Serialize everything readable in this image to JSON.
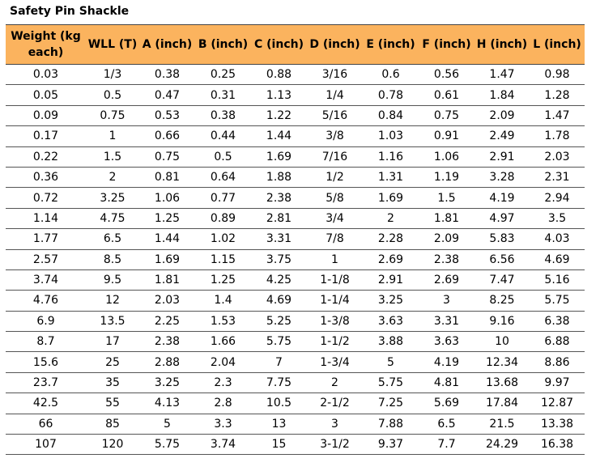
{
  "title": "Safety Pin Shackle",
  "table": {
    "headers": [
      "Weight (kg each)",
      "WLL (T)",
      "A (inch)",
      "B (inch)",
      "C (inch)",
      "D (inch)",
      "E (inch)",
      "F (inch)",
      "H (inch)",
      "L (inch)"
    ],
    "rows": [
      [
        "0.03",
        "1/3",
        "0.38",
        "0.25",
        "0.88",
        "3/16",
        "0.6",
        "0.56",
        "1.47",
        "0.98"
      ],
      [
        "0.05",
        "0.5",
        "0.47",
        "0.31",
        "1.13",
        "1/4",
        "0.78",
        "0.61",
        "1.84",
        "1.28"
      ],
      [
        "0.09",
        "0.75",
        "0.53",
        "0.38",
        "1.22",
        "5/16",
        "0.84",
        "0.75",
        "2.09",
        "1.47"
      ],
      [
        "0.17",
        "1",
        "0.66",
        "0.44",
        "1.44",
        "3/8",
        "1.03",
        "0.91",
        "2.49",
        "1.78"
      ],
      [
        "0.22",
        "1.5",
        "0.75",
        "0.5",
        "1.69",
        "7/16",
        "1.16",
        "1.06",
        "2.91",
        "2.03"
      ],
      [
        "0.36",
        "2",
        "0.81",
        "0.64",
        "1.88",
        "1/2",
        "1.31",
        "1.19",
        "3.28",
        "2.31"
      ],
      [
        "0.72",
        "3.25",
        "1.06",
        "0.77",
        "2.38",
        "5/8",
        "1.69",
        "1.5",
        "4.19",
        "2.94"
      ],
      [
        "1.14",
        "4.75",
        "1.25",
        "0.89",
        "2.81",
        "3/4",
        "2",
        "1.81",
        "4.97",
        "3.5"
      ],
      [
        "1.77",
        "6.5",
        "1.44",
        "1.02",
        "3.31",
        "7/8",
        "2.28",
        "2.09",
        "5.83",
        "4.03"
      ],
      [
        "2.57",
        "8.5",
        "1.69",
        "1.15",
        "3.75",
        "1",
        "2.69",
        "2.38",
        "6.56",
        "4.69"
      ],
      [
        "3.74",
        "9.5",
        "1.81",
        "1.25",
        "4.25",
        "1-1/8",
        "2.91",
        "2.69",
        "7.47",
        "5.16"
      ],
      [
        "4.76",
        "12",
        "2.03",
        "1.4",
        "4.69",
        "1-1/4",
        "3.25",
        "3",
        "8.25",
        "5.75"
      ],
      [
        "6.9",
        "13.5",
        "2.25",
        "1.53",
        "5.25",
        "1-3/8",
        "3.63",
        "3.31",
        "9.16",
        "6.38"
      ],
      [
        "8.7",
        "17",
        "2.38",
        "1.66",
        "5.75",
        "1-1/2",
        "3.88",
        "3.63",
        "10",
        "6.88"
      ],
      [
        "15.6",
        "25",
        "2.88",
        "2.04",
        "7",
        "1-3/4",
        "5",
        "4.19",
        "12.34",
        "8.86"
      ],
      [
        "23.7",
        "35",
        "3.25",
        "2.3",
        "7.75",
        "2",
        "5.75",
        "4.81",
        "13.68",
        "9.97"
      ],
      [
        "42.5",
        "55",
        "4.13",
        "2.8",
        "10.5",
        "2-1/2",
        "7.25",
        "5.69",
        "17.84",
        "12.87"
      ],
      [
        "66",
        "85",
        "5",
        "3.3",
        "13",
        "3",
        "7.88",
        "6.5",
        "21.5",
        "13.38"
      ],
      [
        "107",
        "120",
        "5.75",
        "3.74",
        "15",
        "3-1/2",
        "9.37",
        "7.7",
        "24.29",
        "16.38"
      ]
    ]
  }
}
